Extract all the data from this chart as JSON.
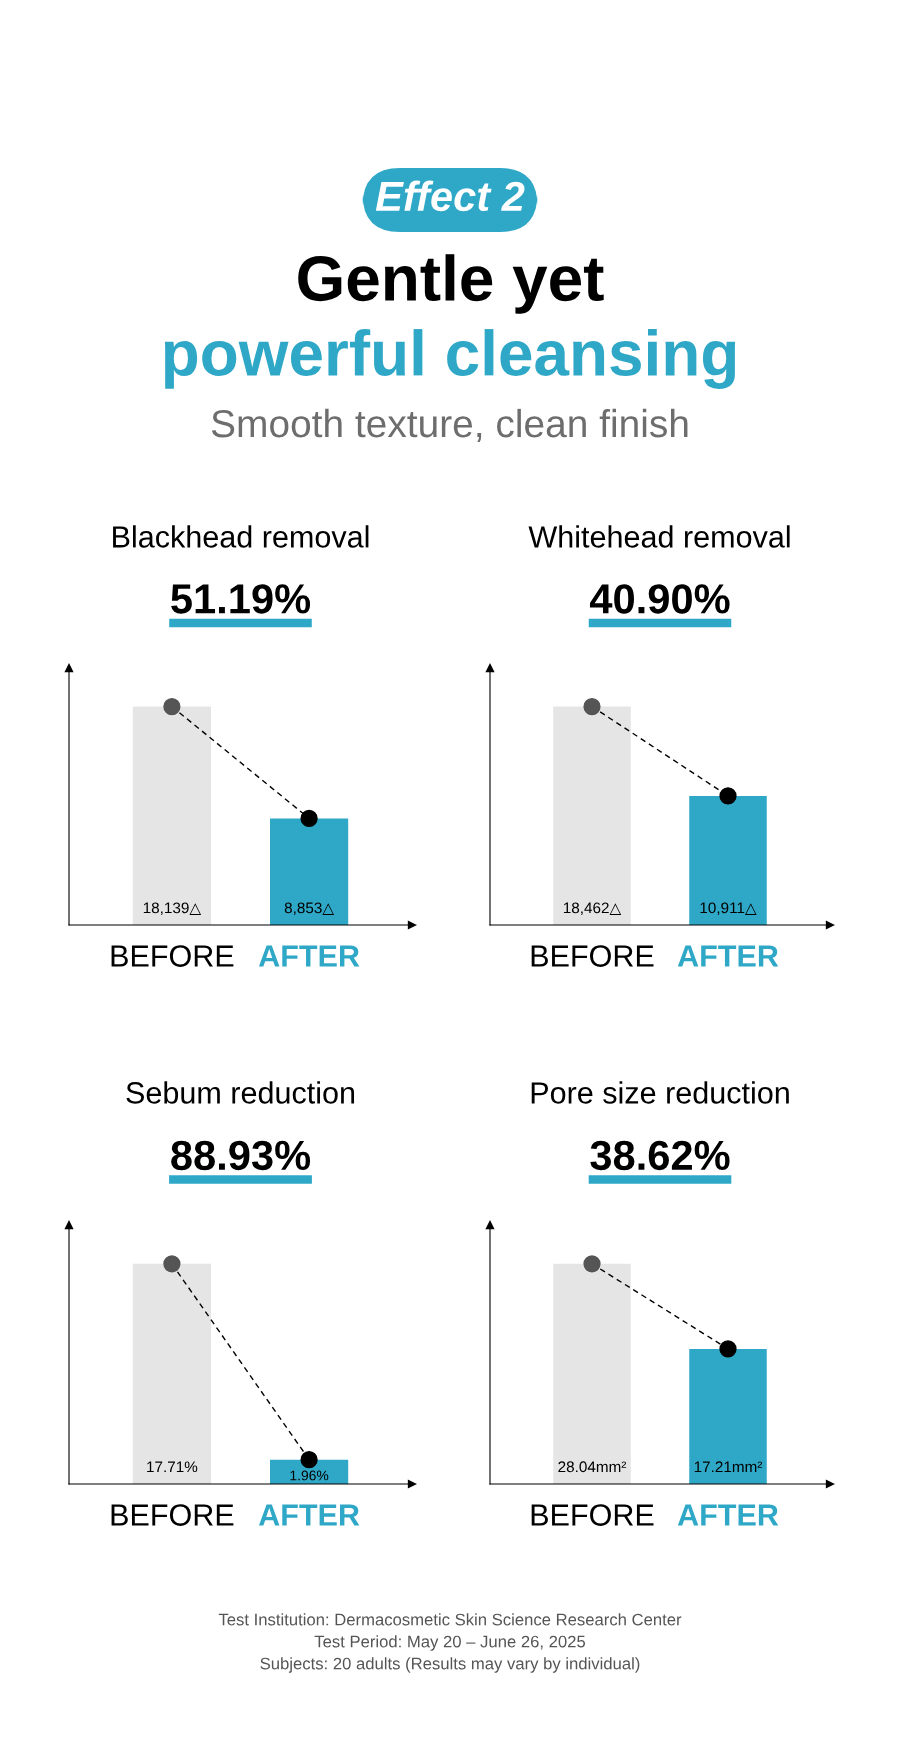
{
  "chart_data": [
    {
      "type": "other",
      "annotations": [
        "Effect 2",
        "Gentle yet",
        "powerful cleansing",
        "Smooth texture, clean finish"
      ]
    },
    {
      "type": "bar",
      "title": "Blackhead removal",
      "subtitle": "51.19%",
      "categories": [
        "BEFORE",
        "AFTER"
      ],
      "tick_labels": "x",
      "series": [
        {
          "type": "bar",
          "colors": [
            "#e5e5e5",
            "#2fa8c8"
          ],
          "values": [
            18139,
            8853
          ],
          "value_labels": [
            "18,139△",
            "8,853△"
          ]
        },
        {
          "type": "line",
          "line_style": "dashed",
          "marker": "circle",
          "colors": [
            "#555555",
            "#000000"
          ],
          "values": [
            18139,
            8853
          ]
        }
      ]
    },
    {
      "type": "bar",
      "title": "Whitehead removal",
      "subtitle": "40.90%",
      "categories": [
        "BEFORE",
        "AFTER"
      ],
      "tick_labels": "x",
      "series": [
        {
          "type": "bar",
          "colors": [
            "#e5e5e5",
            "#2fa8c8"
          ],
          "values": [
            18462,
            10911
          ],
          "value_labels": [
            "18,462△",
            "10,911△"
          ]
        },
        {
          "type": "line",
          "line_style": "dashed",
          "marker": "circle",
          "colors": [
            "#555555",
            "#000000"
          ],
          "values": [
            18462,
            10911
          ]
        }
      ]
    },
    {
      "type": "bar",
      "title": "Sebum reduction",
      "subtitle": "88.93%",
      "categories": [
        "BEFORE",
        "AFTER"
      ],
      "tick_labels": "x",
      "series": [
        {
          "type": "bar",
          "colors": [
            "#e5e5e5",
            "#2fa8c8"
          ],
          "values": [
            17.71,
            1.96
          ],
          "value_labels": [
            "17.71%",
            "1.96%"
          ]
        },
        {
          "type": "line",
          "line_style": "dashed",
          "marker": "circle",
          "colors": [
            "#555555",
            "#000000"
          ],
          "values": [
            17.71,
            1.96
          ]
        }
      ]
    },
    {
      "type": "bar",
      "title": "Pore size reduction",
      "subtitle": "38.62%",
      "categories": [
        "BEFORE",
        "AFTER"
      ],
      "tick_labels": "x",
      "series": [
        {
          "type": "bar",
          "colors": [
            "#e5e5e5",
            "#2fa8c8"
          ],
          "values": [
            28.04,
            17.21
          ],
          "value_labels": [
            "28.04mm²",
            "17.21mm²"
          ]
        },
        {
          "type": "line",
          "line_style": "dashed",
          "marker": "circle",
          "colors": [
            "#555555",
            "#000000"
          ],
          "values": [
            28.04,
            17.21
          ]
        }
      ]
    },
    {
      "type": "other",
      "annotations": [
        "Test Institution: Dermacosmetic Skin Science Research Center",
        "Test Period: May 20 – June 26, 2025",
        "Subjects: 20 adults (Results may vary by individual)"
      ]
    }
  ]
}
